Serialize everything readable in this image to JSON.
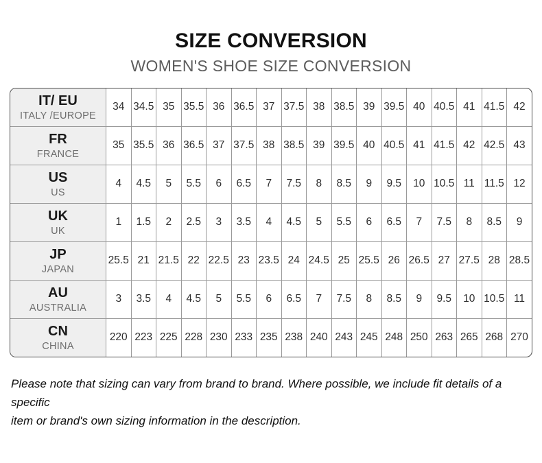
{
  "header": {
    "title": "SIZE CONVERSION",
    "subtitle": "WOMEN'S SHOE SIZE CONVERSION"
  },
  "chart_data": {
    "type": "table",
    "title": "SIZE CONVERSION",
    "subtitle": "WOMEN'S SHOE SIZE CONVERSION",
    "row_header_column": [
      "code",
      "region"
    ],
    "rows": [
      {
        "code": "IT/ EU",
        "region": "ITALY /EUROPE",
        "values": [
          "34",
          "34.5",
          "35",
          "35.5",
          "36",
          "36.5",
          "37",
          "37.5",
          "38",
          "38.5",
          "39",
          "39.5",
          "40",
          "40.5",
          "41",
          "41.5",
          "42"
        ]
      },
      {
        "code": "FR",
        "region": "FRANCE",
        "values": [
          "35",
          "35.5",
          "36",
          "36.5",
          "37",
          "37.5",
          "38",
          "38.5",
          "39",
          "39.5",
          "40",
          "40.5",
          "41",
          "41.5",
          "42",
          "42.5",
          "43"
        ]
      },
      {
        "code": "US",
        "region": "US",
        "values": [
          "4",
          "4.5",
          "5",
          "5.5",
          "6",
          "6.5",
          "7",
          "7.5",
          "8",
          "8.5",
          "9",
          "9.5",
          "10",
          "10.5",
          "11",
          "11.5",
          "12"
        ]
      },
      {
        "code": "UK",
        "region": "UK",
        "values": [
          "1",
          "1.5",
          "2",
          "2.5",
          "3",
          "3.5",
          "4",
          "4.5",
          "5",
          "5.5",
          "6",
          "6.5",
          "7",
          "7.5",
          "8",
          "8.5",
          "9"
        ]
      },
      {
        "code": "JP",
        "region": "JAPAN",
        "values": [
          "25.5",
          "21",
          "21.5",
          "22",
          "22.5",
          "23",
          "23.5",
          "24",
          "24.5",
          "25",
          "25.5",
          "26",
          "26.5",
          "27",
          "27.5",
          "28",
          "28.5"
        ]
      },
      {
        "code": "AU",
        "region": "AUSTRALIA",
        "values": [
          "3",
          "3.5",
          "4",
          "4.5",
          "5",
          "5.5",
          "6",
          "6.5",
          "7",
          "7.5",
          "8",
          "8.5",
          "9",
          "9.5",
          "10",
          "10.5",
          "11"
        ]
      },
      {
        "code": "CN",
        "region": "CHINA",
        "values": [
          "220",
          "223",
          "225",
          "228",
          "230",
          "233",
          "235",
          "238",
          "240",
          "243",
          "245",
          "248",
          "250",
          "263",
          "265",
          "268",
          "270"
        ]
      }
    ]
  },
  "footer": {
    "note_line1": "Please note that sizing can vary from brand to brand. Where possible, we include fit details of a specific",
    "note_line2": "item or brand's own sizing information in the description."
  },
  "colors": {
    "row_header_bg": "#efefef",
    "outer_border": "#4a4a4a",
    "inner_border": "#9a9a9a",
    "title_text": "#111111",
    "subtitle_text": "#5d5d5d",
    "region_text": "#6e6e6e",
    "cell_text": "#2e2e2e"
  }
}
